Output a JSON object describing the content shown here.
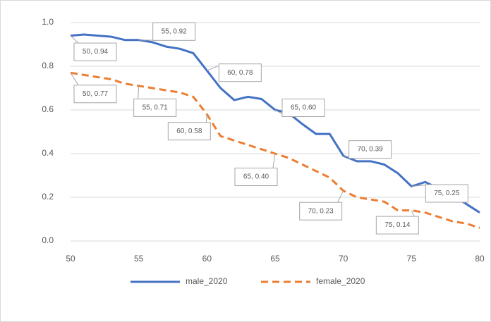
{
  "chart_data": {
    "type": "line",
    "x": [
      50,
      51,
      52,
      53,
      54,
      55,
      56,
      57,
      58,
      59,
      60,
      61,
      62,
      63,
      64,
      65,
      66,
      67,
      68,
      69,
      70,
      71,
      72,
      73,
      74,
      75,
      76,
      77,
      78,
      79,
      80
    ],
    "series": [
      {
        "name": "male_2020",
        "color": "#4472c4",
        "dash": false,
        "values": [
          0.94,
          0.945,
          0.94,
          0.935,
          0.92,
          0.92,
          0.91,
          0.89,
          0.88,
          0.86,
          0.78,
          0.7,
          0.645,
          0.66,
          0.65,
          0.6,
          0.585,
          0.535,
          0.49,
          0.49,
          0.39,
          0.365,
          0.365,
          0.35,
          0.31,
          0.25,
          0.27,
          0.24,
          0.21,
          0.17,
          0.13
        ]
      },
      {
        "name": "female_2020",
        "color": "#ed7d31",
        "dash": true,
        "values": [
          0.77,
          0.76,
          0.75,
          0.74,
          0.72,
          0.71,
          0.7,
          0.69,
          0.68,
          0.66,
          0.58,
          0.48,
          0.46,
          0.44,
          0.42,
          0.4,
          0.38,
          0.35,
          0.32,
          0.29,
          0.23,
          0.2,
          0.19,
          0.18,
          0.14,
          0.14,
          0.13,
          0.11,
          0.09,
          0.08,
          0.06
        ]
      }
    ],
    "xlim": [
      50,
      80
    ],
    "xticks": [
      50,
      55,
      60,
      65,
      70,
      75,
      80
    ],
    "ylim": [
      0,
      1
    ],
    "yticks": [
      {
        "value": 0,
        "label": "0.0"
      },
      0.2,
      0.4,
      0.6,
      0.8,
      {
        "value": 1,
        "label": "1.0"
      }
    ],
    "grid": true,
    "legend": "bottom",
    "annotations": [
      {
        "text": "50, 0.94",
        "x": 50,
        "y": 0.94
      },
      {
        "text": "55, 0.92",
        "x": 55,
        "y": 0.92
      },
      {
        "text": "60, 0.78",
        "x": 60,
        "y": 0.78
      },
      {
        "text": "65, 0.60",
        "x": 65,
        "y": 0.6
      },
      {
        "text": "70, 0.39",
        "x": 70,
        "y": 0.39
      },
      {
        "text": "75, 0.25",
        "x": 75,
        "y": 0.25
      },
      {
        "text": "50, 0.77",
        "x": 50,
        "y": 0.77
      },
      {
        "text": "55, 0.71",
        "x": 55,
        "y": 0.71
      },
      {
        "text": "60, 0.58",
        "x": 60,
        "y": 0.58
      },
      {
        "text": "65, 0.40",
        "x": 65,
        "y": 0.4
      },
      {
        "text": "70, 0.23",
        "x": 70,
        "y": 0.23
      },
      {
        "text": "75, 0.14",
        "x": 75,
        "y": 0.14
      }
    ]
  }
}
